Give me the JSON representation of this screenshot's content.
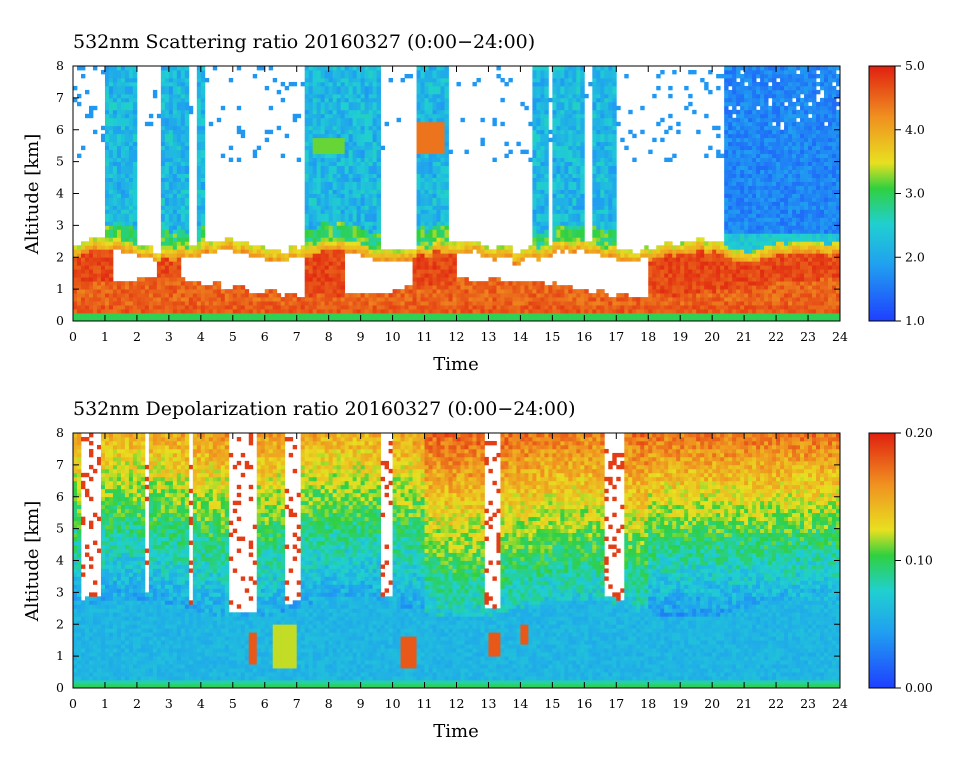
{
  "chart_data": [
    {
      "type": "heatmap",
      "title": "532nm Scattering ratio  20160327 (0:00−24:00)",
      "xlabel": "Time",
      "ylabel": "Altitude [km]",
      "xlim": [
        0,
        24
      ],
      "ylim": [
        0,
        8
      ],
      "xticks": [
        "0",
        "1",
        "2",
        "3",
        "4",
        "5",
        "6",
        "7",
        "8",
        "9",
        "10",
        "11",
        "12",
        "13",
        "14",
        "15",
        "16",
        "17",
        "18",
        "19",
        "20",
        "21",
        "22",
        "23",
        "24"
      ],
      "yticks": [
        "0",
        "1",
        "2",
        "3",
        "4",
        "5",
        "6",
        "7",
        "8"
      ],
      "colorbar": {
        "min": 1.0,
        "max": 5.0,
        "ticks": [
          "1.0",
          "2.0",
          "3.0",
          "4.0",
          "5.0"
        ],
        "colors": [
          "#1f3fff",
          "#20c8e0",
          "#30d040",
          "#f0e020",
          "#f09020",
          "#e02010"
        ]
      },
      "features": {
        "low_layer_top_km": 2.3,
        "cloud_columns_h": [
          [
            1.0,
            2.0
          ],
          [
            2.7,
            3.6
          ],
          [
            3.9,
            4.1
          ],
          [
            7.3,
            9.6
          ],
          [
            10.7,
            11.8
          ],
          [
            14.4,
            14.9
          ],
          [
            15.0,
            16.0
          ],
          [
            16.2,
            17.0
          ],
          [
            20.4,
            24.0
          ]
        ]
      }
    },
    {
      "type": "heatmap",
      "title": "532nm Depolarization ratio  20160327 (0:00−24:00)",
      "xlabel": "Time",
      "ylabel": "Altitude [km]",
      "xlim": [
        0,
        24
      ],
      "ylim": [
        0,
        8
      ],
      "xticks": [
        "0",
        "1",
        "2",
        "3",
        "4",
        "5",
        "6",
        "7",
        "8",
        "9",
        "10",
        "11",
        "12",
        "13",
        "14",
        "15",
        "16",
        "17",
        "18",
        "19",
        "20",
        "21",
        "22",
        "23",
        "24"
      ],
      "yticks": [
        "0",
        "1",
        "2",
        "3",
        "4",
        "5",
        "6",
        "7",
        "8"
      ],
      "colorbar": {
        "min": 0.0,
        "max": 0.2,
        "ticks": [
          "0.00",
          "0.10",
          "0.20"
        ],
        "colors": [
          "#1f3fff",
          "#20c8e0",
          "#30d040",
          "#f0e020",
          "#f09020",
          "#e02010"
        ]
      },
      "features": {
        "boundary_layer_top_km": 2.5,
        "clear_gaps_h": [
          [
            0.2,
            0.9
          ],
          [
            2.2,
            2.4
          ],
          [
            3.6,
            3.8
          ],
          [
            4.9,
            5.7
          ],
          [
            6.6,
            7.1
          ],
          [
            9.6,
            10.0
          ],
          [
            12.9,
            13.4
          ],
          [
            16.6,
            17.2
          ]
        ]
      }
    }
  ]
}
